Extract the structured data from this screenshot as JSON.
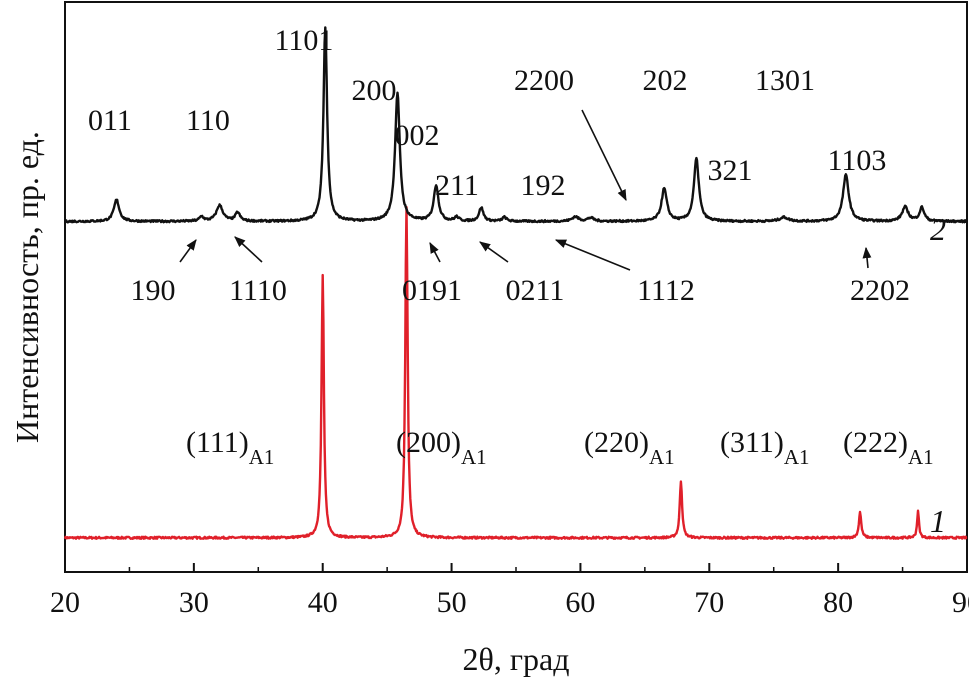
{
  "chart_data": {
    "type": "line",
    "title": "",
    "xlabel": "2θ, град",
    "ylabel": "Интенсивность, пр. ед.",
    "xlim": [
      20,
      90
    ],
    "ylim": [
      0,
      1
    ],
    "xticks": [
      20,
      30,
      40,
      50,
      60,
      70,
      80,
      90
    ],
    "grid": false,
    "legend": "none",
    "series": [
      {
        "curve_id": "1",
        "color": "#e0202a",
        "baseline": 0.06,
        "peaks": [
          {
            "x": 40.0,
            "height": 0.46,
            "width": 0.11
          },
          {
            "x": 46.5,
            "height": 0.58,
            "width": 0.11
          },
          {
            "x": 67.8,
            "height": 0.1,
            "width": 0.11
          },
          {
            "x": 81.7,
            "height": 0.045,
            "width": 0.11
          },
          {
            "x": 86.2,
            "height": 0.046,
            "width": 0.09
          }
        ],
        "labels": [
          {
            "text": "(111)",
            "sub": "A1",
            "x": 40.0
          },
          {
            "text": "(200)",
            "sub": "A1",
            "x": 46.5
          },
          {
            "text": "(220)",
            "sub": "A1",
            "x": 67.8
          },
          {
            "text": "(311)",
            "sub": "A1",
            "x": 81.7
          },
          {
            "text": "(222)",
            "sub": "A1",
            "x": 86.2
          }
        ]
      },
      {
        "curve_id": "2",
        "color": "#111111",
        "baseline": 0.615,
        "peaks": [
          {
            "x": 24.0,
            "height": 0.038,
            "width": 0.25
          },
          {
            "x": 30.6,
            "height": 0.008,
            "width": 0.2
          },
          {
            "x": 32.0,
            "height": 0.028,
            "width": 0.3
          },
          {
            "x": 33.4,
            "height": 0.015,
            "width": 0.22
          },
          {
            "x": 40.2,
            "height": 0.34,
            "width": 0.17
          },
          {
            "x": 45.8,
            "height": 0.225,
            "width": 0.22
          },
          {
            "x": 48.8,
            "height": 0.063,
            "width": 0.22
          },
          {
            "x": 50.4,
            "height": 0.007,
            "width": 0.2
          },
          {
            "x": 52.3,
            "height": 0.024,
            "width": 0.2
          },
          {
            "x": 54.1,
            "height": 0.007,
            "width": 0.2
          },
          {
            "x": 59.6,
            "height": 0.008,
            "width": 0.3
          },
          {
            "x": 60.8,
            "height": 0.006,
            "width": 0.3
          },
          {
            "x": 66.5,
            "height": 0.057,
            "width": 0.25
          },
          {
            "x": 69.0,
            "height": 0.11,
            "width": 0.23
          },
          {
            "x": 75.8,
            "height": 0.007,
            "width": 0.4
          },
          {
            "x": 80.6,
            "height": 0.081,
            "width": 0.27
          },
          {
            "x": 85.2,
            "height": 0.025,
            "width": 0.28
          },
          {
            "x": 86.5,
            "height": 0.024,
            "width": 0.22
          }
        ],
        "labels": [
          {
            "text": "011",
            "x": 24.0
          },
          {
            "text": "110",
            "x": 32.0
          },
          {
            "text": "1101",
            "x": 40.2
          },
          {
            "text": "200",
            "x": 45.8
          },
          {
            "text": "002",
            "x": 48.8
          },
          {
            "text": "211",
            "x": 52.3
          },
          {
            "text": "192",
            "x": 59.6
          },
          {
            "text": "2200",
            "x": 66.5
          },
          {
            "text": "202",
            "x": 69.0
          },
          {
            "text": "321",
            "x": 75.8
          },
          {
            "text": "1301",
            "x": 80.6
          },
          {
            "text": "1103",
            "x": 85.2
          },
          {
            "text": "190",
            "x": 30.6
          },
          {
            "text": "1110",
            "x": 33.4
          },
          {
            "text": "0191",
            "x": 50.4
          },
          {
            "text": "0211",
            "x": 54.1
          },
          {
            "text": "1112",
            "x": 60.8
          },
          {
            "text": "2202",
            "x": 86.5
          }
        ]
      }
    ]
  }
}
